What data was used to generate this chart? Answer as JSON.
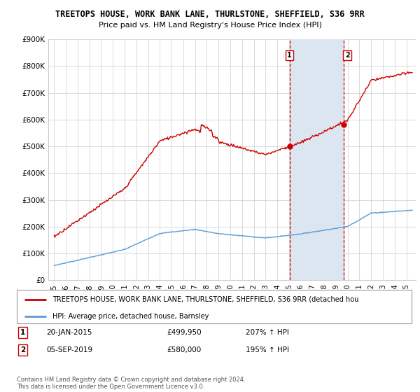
{
  "title": "TREETOPS HOUSE, WORK BANK LANE, THURLSTONE, SHEFFIELD, S36 9RR",
  "subtitle": "Price paid vs. HM Land Registry's House Price Index (HPI)",
  "ylim": [
    0,
    900000
  ],
  "yticks": [
    0,
    100000,
    200000,
    300000,
    400000,
    500000,
    600000,
    700000,
    800000,
    900000
  ],
  "ytick_labels": [
    "£0",
    "£100K",
    "£200K",
    "£300K",
    "£400K",
    "£500K",
    "£600K",
    "£700K",
    "£800K",
    "£900K"
  ],
  "xlim_start": 1994.5,
  "xlim_end": 2025.8,
  "sale1_year": 2015.05,
  "sale1_price": 499950,
  "sale2_year": 2019.67,
  "sale2_price": 580000,
  "legend_red": "TREETOPS HOUSE, WORK BANK LANE, THURLSTONE, SHEFFIELD, S36 9RR (detached hou",
  "legend_blue": "HPI: Average price, detached house, Barnsley",
  "footnote": "Contains HM Land Registry data © Crown copyright and database right 2024.\nThis data is licensed under the Open Government Licence v3.0.",
  "red_color": "#cc0000",
  "blue_color": "#5b9bd5",
  "shade_color": "#dce6f1",
  "shade_start": 2015.05,
  "shade_end": 2019.67
}
